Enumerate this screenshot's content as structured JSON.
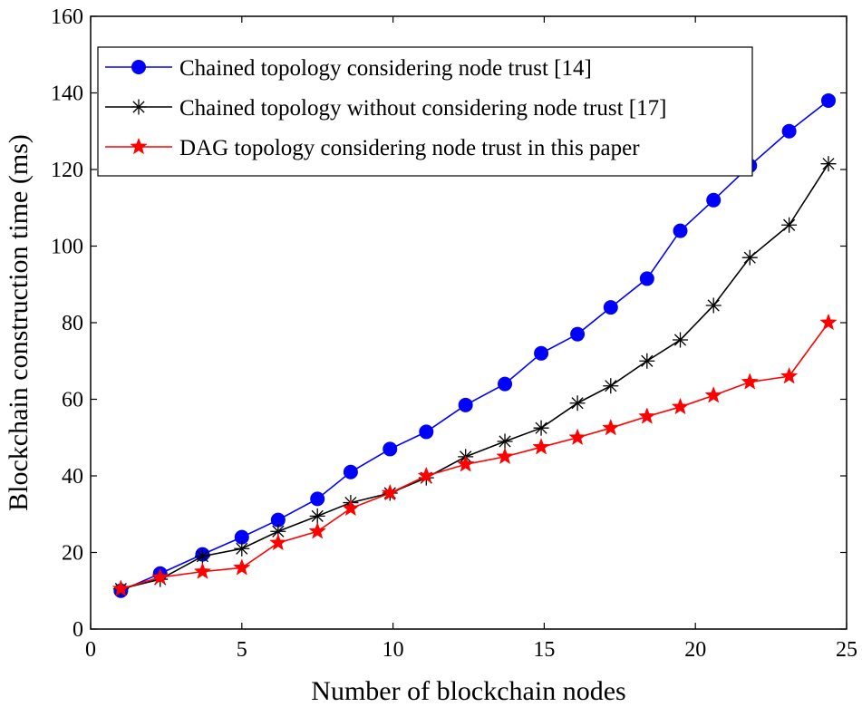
{
  "chart_data": {
    "type": "line",
    "xlabel": "Number of blockchain nodes",
    "ylabel": "Blockchain construction time (ms)",
    "xlim": [
      0,
      25
    ],
    "ylim": [
      0,
      160
    ],
    "xticks": [
      "0",
      "5",
      "10",
      "15",
      "20",
      "25"
    ],
    "yticks": [
      "0",
      "20",
      "40",
      "60",
      "80",
      "100",
      "120",
      "140",
      "160"
    ],
    "grid": false,
    "legend_position": "top-left",
    "series": [
      {
        "name": "Chained topology considering node trust [14]",
        "color": "#0000ff",
        "marker": "circle",
        "x": [
          1,
          2.3,
          3.7,
          5,
          6.2,
          7.5,
          8.6,
          9.9,
          11.1,
          12.4,
          13.7,
          14.9,
          16.1,
          17.2,
          18.4,
          19.5,
          20.6,
          21.8,
          23.1,
          24.4
        ],
        "y": [
          10,
          14.5,
          19.5,
          24,
          28.5,
          34,
          41,
          47,
          51.5,
          58.5,
          64,
          72,
          77,
          84,
          91.5,
          104,
          112,
          121,
          130,
          138
        ]
      },
      {
        "name": "Chained topology without considering node trust [17]",
        "color": "#000000",
        "marker": "asterisk",
        "x": [
          1,
          2.3,
          3.7,
          5,
          6.2,
          7.5,
          8.6,
          9.9,
          11.1,
          12.4,
          13.7,
          14.9,
          16.1,
          17.2,
          18.4,
          19.5,
          20.6,
          21.8,
          23.1,
          24.4
        ],
        "y": [
          10.5,
          13,
          19,
          21,
          25.5,
          29.5,
          33,
          35.5,
          39.5,
          45,
          49,
          52.5,
          59,
          63.5,
          70,
          75.5,
          84.5,
          97,
          105.5,
          121.5
        ]
      },
      {
        "name": "DAG topology considering node trust in this paper",
        "color": "#ff0000",
        "marker": "star",
        "x": [
          1,
          2.3,
          3.7,
          5,
          6.2,
          7.5,
          8.6,
          9.9,
          11.1,
          12.4,
          13.7,
          14.9,
          16.1,
          17.2,
          18.4,
          19.5,
          20.6,
          21.8,
          23.1,
          24.4
        ],
        "y": [
          10.5,
          13.5,
          15,
          16,
          22.5,
          25.5,
          31.5,
          35.5,
          40,
          43,
          45,
          47.5,
          50,
          52.5,
          55.5,
          58,
          61,
          64.5,
          66,
          80
        ]
      }
    ]
  }
}
